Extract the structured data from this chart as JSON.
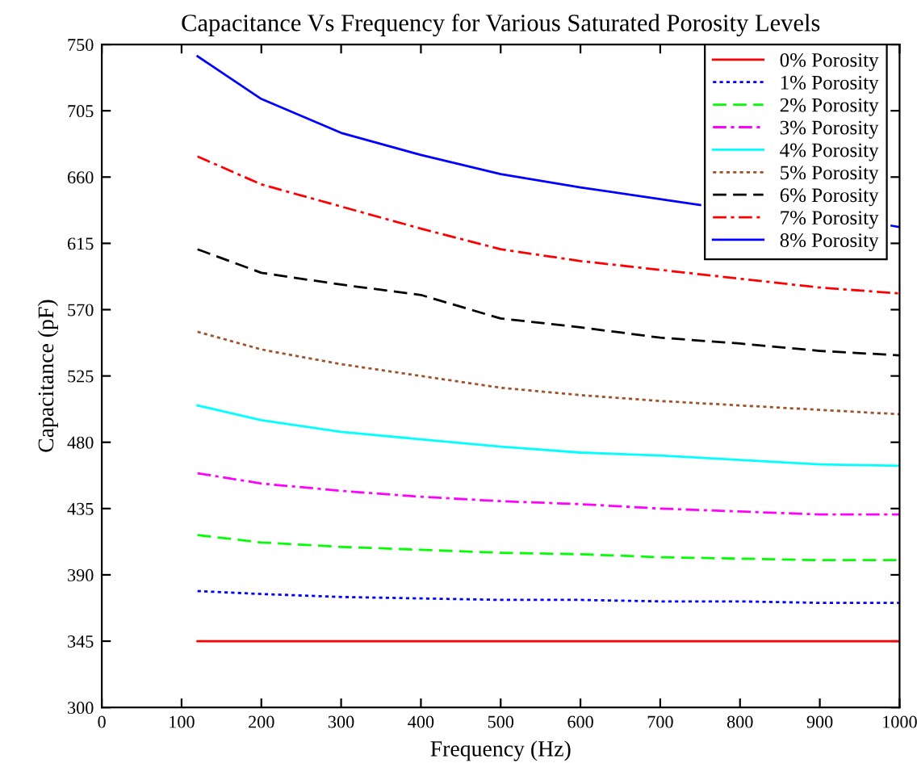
{
  "chart_data": {
    "type": "line",
    "title": "Capacitance Vs Frequency for Various Saturated Porosity Levels",
    "xlabel": "Frequency (Hz)",
    "ylabel": "Capacitance (pF)",
    "x": [
      120,
      200,
      300,
      400,
      500,
      600,
      700,
      800,
      900,
      1000
    ],
    "xlim": [
      0,
      1000
    ],
    "xticks": [
      0,
      100,
      200,
      300,
      400,
      500,
      600,
      700,
      800,
      900,
      1000
    ],
    "ylim": [
      300,
      750
    ],
    "yticks": [
      300,
      345,
      390,
      435,
      480,
      525,
      570,
      615,
      660,
      705,
      750
    ],
    "grid": false,
    "legend": "top right",
    "marker": "none",
    "series": [
      {
        "name": "0% Porosity",
        "color": "#ff0000",
        "line_style": "solid",
        "values": [
          345,
          345,
          345,
          345,
          345,
          345,
          345,
          345,
          345,
          345
        ]
      },
      {
        "name": "1% Porosity",
        "color": "#0000ff",
        "line_style": "dotted",
        "values": [
          379,
          377,
          375,
          374,
          373,
          373,
          372,
          372,
          371,
          371
        ]
      },
      {
        "name": "2% Porosity",
        "color": "#00ff00",
        "line_style": "dashed",
        "values": [
          417,
          412,
          409,
          407,
          405,
          404,
          402,
          401,
          400,
          400
        ]
      },
      {
        "name": "3% Porosity",
        "color": "#ff00ff",
        "line_style": "dashdot",
        "values": [
          459,
          452,
          447,
          443,
          440,
          438,
          435,
          433,
          431,
          431
        ]
      },
      {
        "name": "4% Porosity",
        "color": "#00ffff",
        "line_style": "solid",
        "values": [
          505,
          495,
          487,
          482,
          477,
          473,
          471,
          468,
          465,
          464
        ]
      },
      {
        "name": "5% Porosity",
        "color": "#a0522d",
        "line_style": "dotted",
        "values": [
          555,
          543,
          533,
          525,
          517,
          512,
          508,
          505,
          502,
          499
        ]
      },
      {
        "name": "6% Porosity",
        "color": "#000000",
        "line_style": "dashed",
        "values": [
          611,
          595,
          587,
          580,
          564,
          558,
          551,
          547,
          542,
          539
        ]
      },
      {
        "name": "7% Porosity",
        "color": "#ff0000",
        "line_style": "dashdot",
        "values": [
          674,
          655,
          640,
          625,
          611,
          603,
          597,
          591,
          585,
          581
        ]
      },
      {
        "name": "8% Porosity",
        "color": "#0000ff",
        "line_style": "solid",
        "x": [
          120,
          200,
          300,
          400,
          500,
          600,
          700,
          750,
          800,
          900,
          990,
          1000
        ],
        "values": [
          742,
          713,
          690,
          675,
          662,
          653,
          645,
          641,
          null,
          null,
          627,
          626
        ]
      }
    ]
  }
}
